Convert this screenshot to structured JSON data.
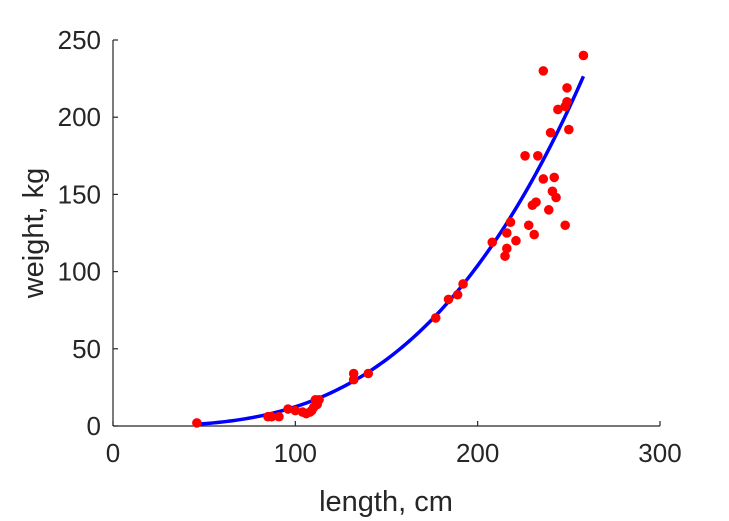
{
  "chart_data": {
    "type": "scatter",
    "title": "",
    "xlabel": "length, cm",
    "ylabel": "weight, kg",
    "xlim": [
      0,
      300
    ],
    "ylim": [
      0,
      250
    ],
    "xticks": [
      0,
      100,
      200,
      300
    ],
    "yticks": [
      0,
      50,
      100,
      150,
      200,
      250
    ],
    "grid": false,
    "legend": "none",
    "series": [
      {
        "kind": "scatter",
        "color": "#ff0000",
        "points": [
          [
            46,
            2
          ],
          [
            85,
            6
          ],
          [
            87,
            6
          ],
          [
            91,
            6
          ],
          [
            96,
            11
          ],
          [
            100,
            10
          ],
          [
            104,
            9
          ],
          [
            106,
            8
          ],
          [
            108,
            9
          ],
          [
            109,
            10
          ],
          [
            110,
            12
          ],
          [
            111,
            17
          ],
          [
            112,
            14
          ],
          [
            113,
            17
          ],
          [
            132,
            30
          ],
          [
            132,
            34
          ],
          [
            140,
            34
          ],
          [
            177,
            70
          ],
          [
            184,
            82
          ],
          [
            189,
            85
          ],
          [
            192,
            92
          ],
          [
            208,
            119
          ],
          [
            215,
            110
          ],
          [
            216,
            115
          ],
          [
            216,
            125
          ],
          [
            218,
            132
          ],
          [
            221,
            120
          ],
          [
            226,
            175
          ],
          [
            228,
            130
          ],
          [
            230,
            143
          ],
          [
            231,
            124
          ],
          [
            232,
            145
          ],
          [
            233,
            175
          ],
          [
            236,
            160
          ],
          [
            236,
            230
          ],
          [
            239,
            140
          ],
          [
            240,
            190
          ],
          [
            241,
            152
          ],
          [
            242,
            161
          ],
          [
            243,
            148
          ],
          [
            244,
            205
          ],
          [
            248,
            130
          ],
          [
            248,
            207
          ],
          [
            249,
            210
          ],
          [
            249,
            219
          ],
          [
            250,
            192
          ],
          [
            258,
            240
          ]
        ]
      },
      {
        "kind": "line",
        "color": "#0000ff",
        "curve": {
          "form": "power",
          "a": 9.45e-06,
          "b": 3.06,
          "x_start": 46,
          "x_end": 258
        }
      }
    ]
  }
}
